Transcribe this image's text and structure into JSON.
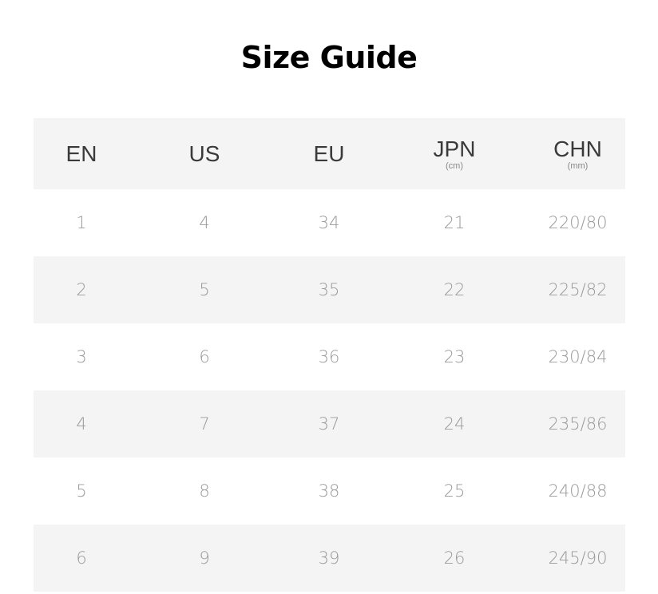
{
  "title": "Size Guide",
  "colors": {
    "band": "#f4f4f4",
    "header_text": "#3a3a3a",
    "cell_text": "#9a9a9a"
  },
  "columns": [
    {
      "label": "EN",
      "unit": ""
    },
    {
      "label": "US",
      "unit": ""
    },
    {
      "label": "EU",
      "unit": ""
    },
    {
      "label": "JPN",
      "unit": "(cm)"
    },
    {
      "label": "CHN",
      "unit": "(mm)"
    }
  ],
  "rows": [
    [
      "1",
      "4",
      "34",
      "21",
      "220/80"
    ],
    [
      "2",
      "5",
      "35",
      "22",
      "225/82"
    ],
    [
      "3",
      "6",
      "36",
      "23",
      "230/84"
    ],
    [
      "4",
      "7",
      "37",
      "24",
      "235/86"
    ],
    [
      "5",
      "8",
      "38",
      "25",
      "240/88"
    ],
    [
      "6",
      "9",
      "39",
      "26",
      "245/90"
    ]
  ]
}
